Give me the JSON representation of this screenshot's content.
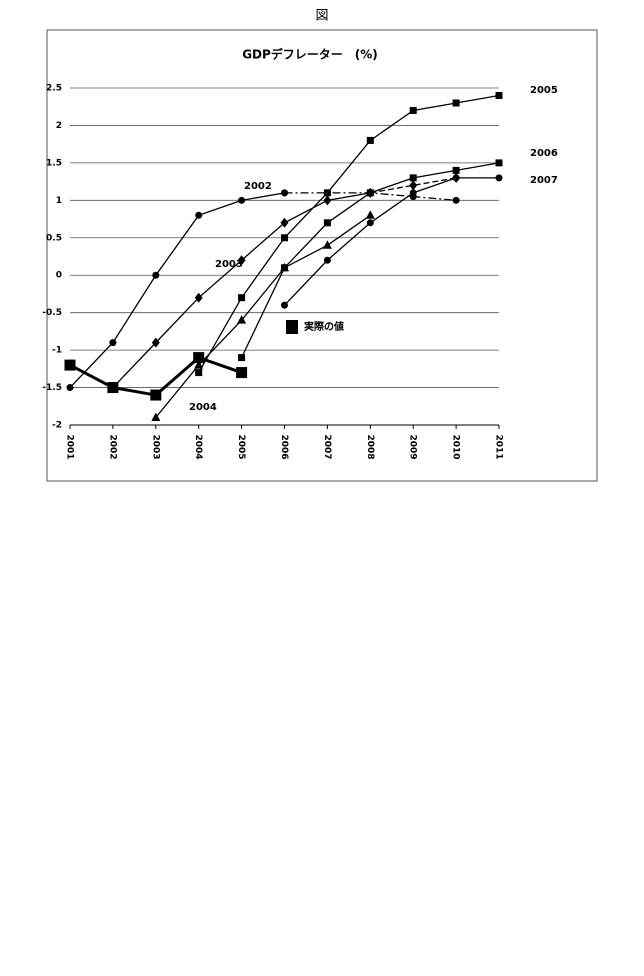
{
  "figure_label": "図",
  "chart_data": {
    "type": "line",
    "title": "GDPデフレーター　(%)",
    "categories": [
      "2001",
      "2002",
      "2003",
      "2004",
      "2005",
      "2006",
      "2007",
      "2008",
      "2009",
      "2010",
      "2011"
    ],
    "ylim": [
      -2,
      2.5
    ],
    "yticks": [
      -2,
      -1.5,
      -1,
      -0.5,
      0,
      0.5,
      1,
      1.5,
      2,
      2.5
    ],
    "grid": true,
    "series": [
      {
        "name": "2002",
        "color": "#000000",
        "marker": "circle",
        "dash": "solid",
        "values": [
          -1.5,
          -0.9,
          0,
          0.8,
          1.0,
          1.1,
          null,
          null,
          null,
          null,
          null
        ]
      },
      {
        "color": "#000000",
        "marker": "circle",
        "dash": "dash-dot",
        "values": [
          null,
          null,
          null,
          null,
          null,
          1.1,
          1.1,
          1.1,
          1.05,
          1.0,
          null
        ]
      },
      {
        "name": "2003",
        "color": "#000000",
        "marker": "diamond",
        "dash": "solid",
        "values": [
          null,
          -1.5,
          -0.9,
          -0.3,
          0.2,
          0.7,
          1.0,
          1.1,
          null,
          null,
          null
        ]
      },
      {
        "color": "#000000",
        "marker": "diamond",
        "dash": "dash",
        "values": [
          null,
          null,
          null,
          null,
          null,
          null,
          null,
          1.1,
          1.2,
          1.3,
          null
        ]
      },
      {
        "name": "2004",
        "color": "#000000",
        "marker": "triangle",
        "dash": "solid",
        "values": [
          null,
          null,
          -1.9,
          -1.2,
          -0.6,
          0.1,
          0.4,
          0.8,
          null,
          null,
          null
        ]
      },
      {
        "name": "2005",
        "color": "#000000",
        "marker": "square",
        "dash": "solid",
        "values": [
          null,
          null,
          null,
          -1.3,
          -0.3,
          0.5,
          1.1,
          1.8,
          2.2,
          2.3,
          2.4
        ]
      },
      {
        "name": "2006",
        "color": "#000000",
        "marker": "square",
        "dash": "solid",
        "values": [
          null,
          null,
          null,
          null,
          -1.1,
          0.1,
          0.7,
          1.1,
          1.3,
          1.4,
          1.5
        ]
      },
      {
        "name": "2007",
        "color": "#000000",
        "marker": "circle",
        "dash": "solid",
        "values": [
          null,
          null,
          null,
          null,
          null,
          -0.4,
          0.2,
          0.7,
          1.1,
          1.3,
          1.3
        ]
      },
      {
        "name": "実際の値",
        "color": "#000000",
        "marker": "big-square",
        "dash": "thick",
        "values": [
          -1.2,
          -1.5,
          -1.6,
          -1.1,
          -1.3,
          null,
          null,
          null,
          null,
          null,
          null
        ]
      }
    ]
  }
}
